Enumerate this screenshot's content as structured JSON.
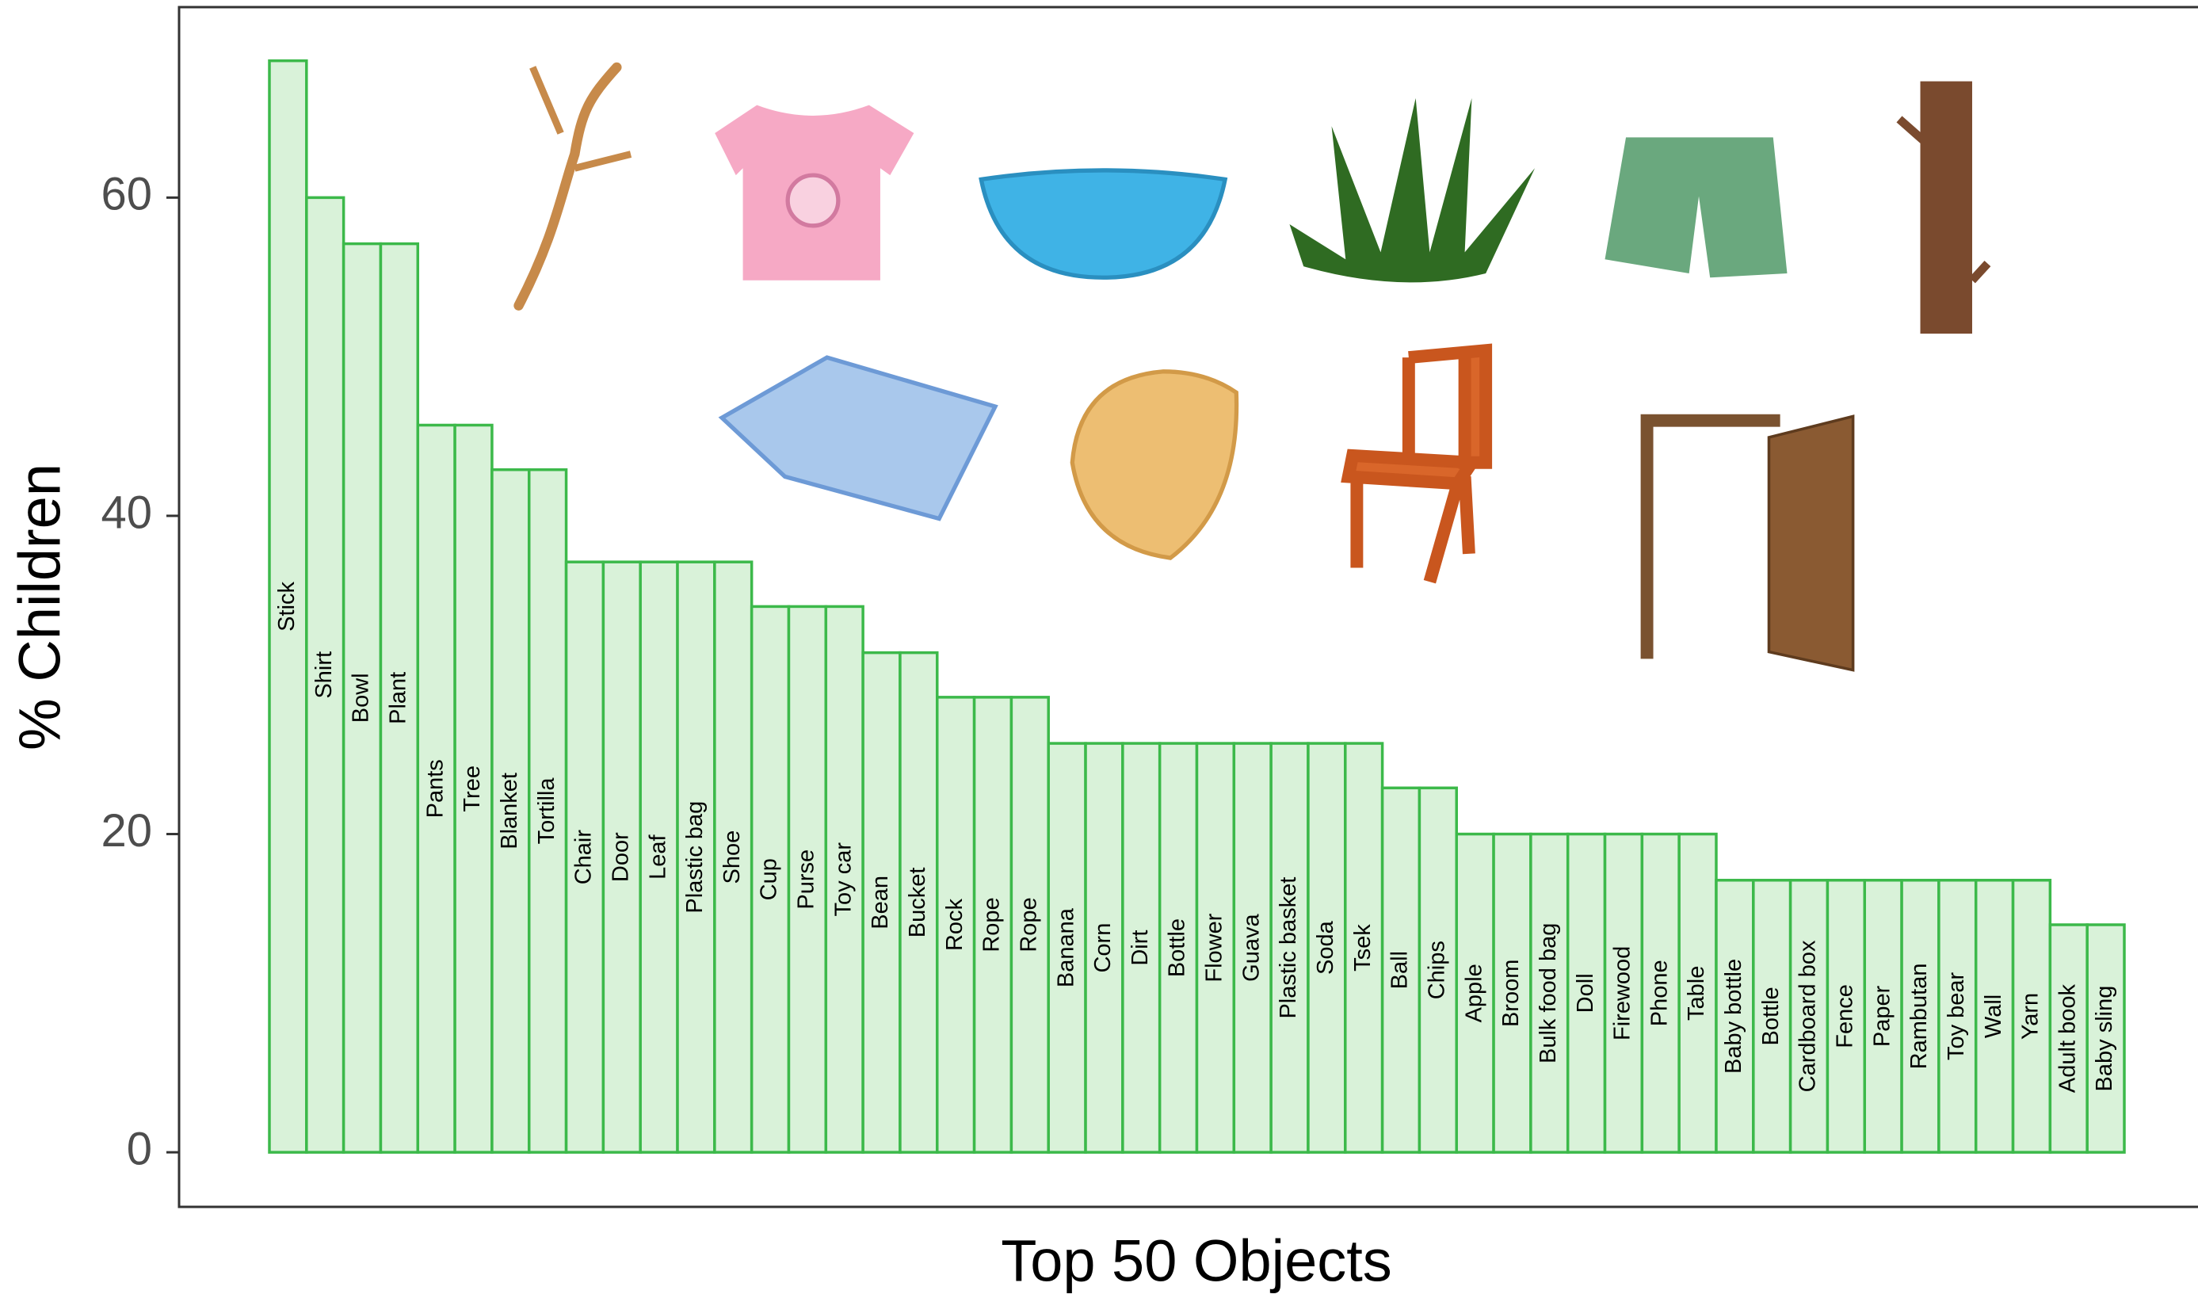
{
  "chart_data": {
    "type": "bar",
    "x_label": "Top 50 Objects",
    "y_label": "% Children",
    "categories": [
      "Stick",
      "Shirt",
      "Bowl",
      "Plant",
      "Pants",
      "Tree",
      "Blanket",
      "Tortilla",
      "Chair",
      "Door",
      "Leaf",
      "Plastic bag",
      "Shoe",
      "Cup",
      "Purse",
      "Toy car",
      "Bean",
      "Bucket",
      "Rock",
      "Rope",
      "Rope",
      "Banana",
      "Corn",
      "Dirt",
      "Bottle",
      "Flower",
      "Guava",
      "Plastic basket",
      "Soda",
      "Tsek",
      "Ball",
      "Chips",
      "Apple",
      "Broom",
      "Bulk food bag",
      "Doll",
      "Firewood",
      "Phone",
      "Table",
      "Baby bottle",
      "Bottle",
      "Cardboard box",
      "Fence",
      "Paper",
      "Rambutan",
      "Toy bear",
      "Wall",
      "Yarn",
      "Adult book",
      "Baby sling"
    ],
    "values": [
      68.6,
      60.0,
      57.1,
      57.1,
      45.7,
      45.7,
      42.9,
      42.9,
      37.1,
      37.1,
      37.1,
      37.1,
      37.1,
      34.3,
      34.3,
      34.3,
      31.4,
      31.4,
      28.6,
      28.6,
      28.6,
      25.7,
      25.7,
      25.7,
      25.7,
      25.7,
      25.7,
      25.7,
      25.7,
      25.7,
      22.9,
      22.9,
      20.0,
      20.0,
      20.0,
      20.0,
      20.0,
      20.0,
      20.0,
      17.1,
      17.1,
      17.1,
      17.1,
      17.1,
      17.1,
      17.1,
      17.1,
      17.1,
      14.3,
      14.3
    ],
    "color": "#d9f2d9",
    "edge_color": "#3cb94a",
    "ylim": [
      -3.43,
      71.97
    ],
    "yticks": [
      0,
      20,
      40,
      60
    ],
    "grid": false
  }
}
